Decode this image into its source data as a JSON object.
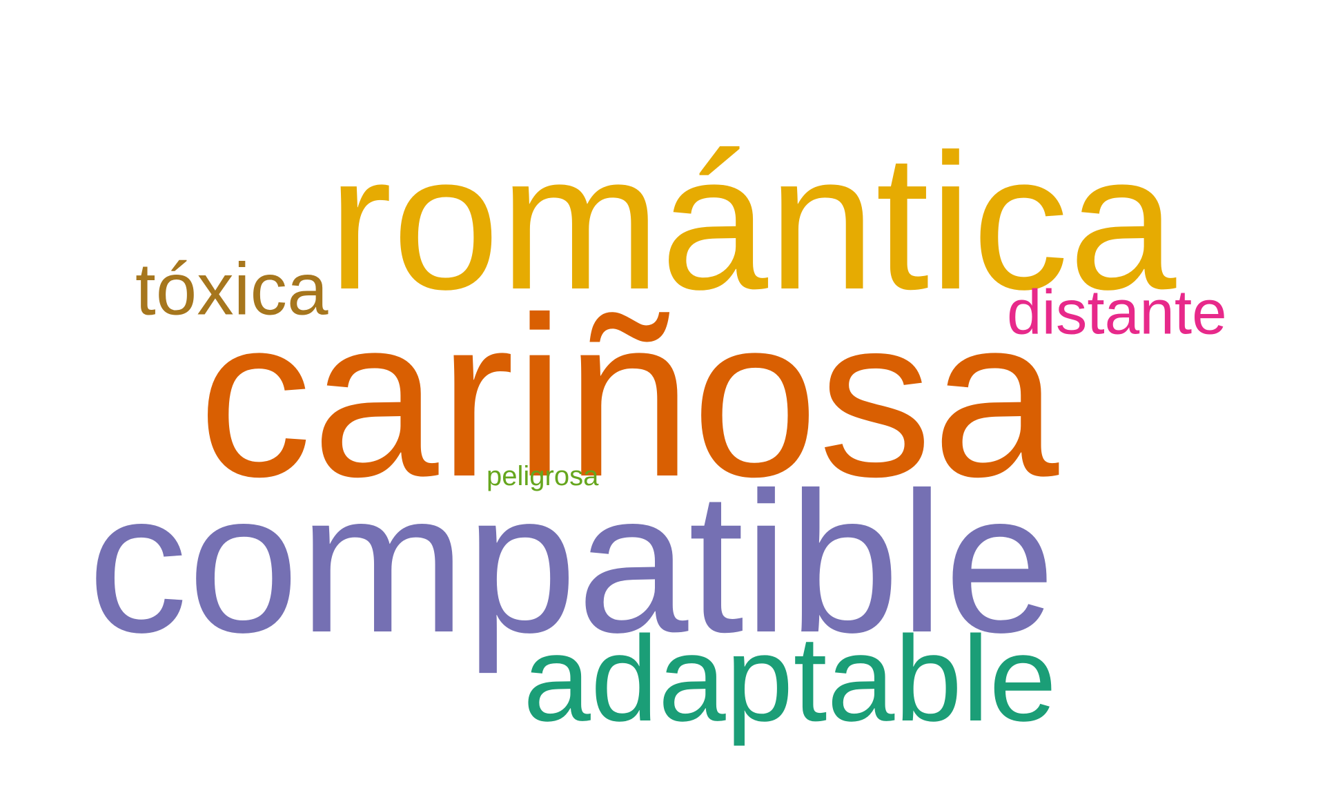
{
  "words": [
    {
      "text": "romántica",
      "color": "#E6AB02"
    },
    {
      "text": "cariñosa",
      "color": "#D95F02"
    },
    {
      "text": "compatible",
      "color": "#7570B3"
    },
    {
      "text": "adaptable",
      "color": "#1B9E77"
    },
    {
      "text": "tóxica",
      "color": "#A6761D"
    },
    {
      "text": "distante",
      "color": "#E7298A"
    },
    {
      "text": "peligrosa",
      "color": "#66A61E"
    }
  ]
}
